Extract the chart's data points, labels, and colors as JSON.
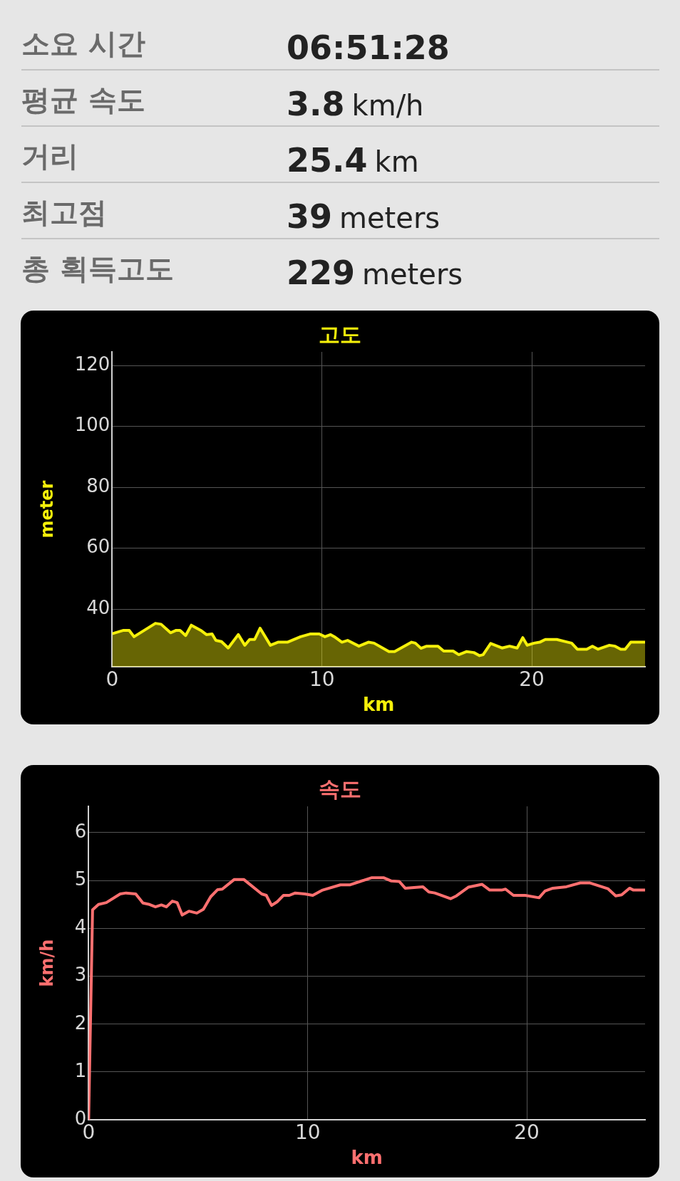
{
  "chart_data": [
    {
      "type": "other",
      "annotations": [
        "소요 시간",
        "06:51:28",
        "평균 속도",
        "3.8 km/h",
        "거리",
        "25.4 km",
        "최고점",
        "39 meters",
        "총 획득고도",
        "229 meters"
      ]
    },
    {
      "type": "area",
      "title": "고도",
      "xlabel": "km",
      "ylabel": "meter",
      "xlim": [
        0,
        25.4
      ],
      "xticks": [
        0,
        10,
        20
      ],
      "ylim": [
        21,
        124.5
      ],
      "yticks": [
        40,
        60,
        80,
        100,
        120
      ],
      "grid": true,
      "legend": false,
      "series": [
        {
          "color": "#f5f00a",
          "x": [
            0,
            0.54,
            0.81,
            1.04,
            2.06,
            2.33,
            2.78,
            3.05,
            3.23,
            3.5,
            3.77,
            4.22,
            4.49,
            4.76,
            4.94,
            5.21,
            5.53,
            6.01,
            6.32,
            6.55,
            6.79,
            7.05,
            7.54,
            7.9,
            8.35,
            8.98,
            9.43,
            9.87,
            10.14,
            10.41,
            10.59,
            10.95,
            11.22,
            11.76,
            12.21,
            12.48,
            13.19,
            13.46,
            14.27,
            14.45,
            14.72,
            14.99,
            15.53,
            15.8,
            16.25,
            16.52,
            16.88,
            17.24,
            17.51,
            17.68,
            18.04,
            18.58,
            18.94,
            19.3,
            19.57,
            19.78,
            20.11,
            20.38,
            20.65,
            21.19,
            21.72,
            21.9,
            22.17,
            22.62,
            22.89,
            23.16,
            23.7,
            23.97,
            24.24,
            24.45,
            24.72,
            25.4
          ],
          "values": [
            31.9,
            33,
            33,
            30.9,
            35.3,
            35,
            32.2,
            33,
            33,
            31.3,
            34.7,
            33,
            31.6,
            31.8,
            29.7,
            29.3,
            27.2,
            31.6,
            28.1,
            30,
            30,
            33.7,
            28.1,
            29.1,
            29.1,
            30.9,
            31.8,
            31.8,
            30.9,
            31.6,
            30.9,
            29.1,
            29.7,
            27.8,
            29.1,
            28.8,
            26,
            26,
            29.1,
            28.8,
            27.1,
            27.8,
            27.8,
            26.2,
            26.2,
            25,
            26,
            25.7,
            24.7,
            25,
            28.7,
            27.2,
            27.8,
            27.2,
            30.6,
            28.1,
            28.8,
            29.1,
            30,
            30,
            29.1,
            28.8,
            26.8,
            26.8,
            27.8,
            26.8,
            28.1,
            27.8,
            26.8,
            26.8,
            29.1,
            29.1
          ]
        }
      ]
    },
    {
      "type": "line",
      "title": "속도",
      "xlabel": "km",
      "ylabel": "km/h",
      "xlim": [
        0,
        25.4
      ],
      "xticks": [
        0,
        10,
        20
      ],
      "ylim": [
        0,
        6.55
      ],
      "yticks": [
        0,
        1,
        2,
        3,
        4,
        5,
        6
      ],
      "grid": true,
      "legend": false,
      "series": [
        {
          "color": "#ff7070",
          "x": [
            0,
            0.18,
            0.45,
            0.81,
            1.44,
            1.71,
            2.15,
            2.48,
            2.78,
            3.05,
            3.32,
            3.55,
            3.82,
            4.04,
            4.27,
            4.58,
            4.94,
            5.24,
            5.57,
            5.89,
            6.1,
            6.64,
            7.09,
            7.9,
            8.11,
            8.35,
            8.62,
            8.89,
            9.16,
            9.43,
            9.87,
            10.23,
            10.68,
            11.49,
            11.94,
            12.39,
            12.93,
            13.46,
            13.82,
            14.18,
            14.45,
            15.26,
            15.53,
            15.8,
            16.52,
            16.79,
            17.33,
            17.96,
            18.31,
            18.85,
            19.03,
            19.39,
            19.93,
            20.56,
            20.83,
            21.19,
            21.81,
            22.44,
            22.89,
            23.7,
            24.06,
            24.33,
            24.69,
            24.87,
            25.4
          ],
          "values": [
            0,
            4.39,
            4.5,
            4.54,
            4.72,
            4.74,
            4.72,
            4.53,
            4.5,
            4.45,
            4.49,
            4.45,
            4.57,
            4.54,
            4.28,
            4.36,
            4.32,
            4.4,
            4.66,
            4.81,
            4.82,
            5.02,
            5.02,
            4.72,
            4.69,
            4.48,
            4.56,
            4.69,
            4.69,
            4.74,
            4.72,
            4.69,
            4.8,
            4.91,
            4.91,
            4.98,
            5.06,
            5.06,
            4.99,
            4.98,
            4.84,
            4.87,
            4.76,
            4.74,
            4.62,
            4.68,
            4.86,
            4.92,
            4.8,
            4.8,
            4.82,
            4.69,
            4.69,
            4.64,
            4.78,
            4.84,
            4.87,
            4.95,
            4.95,
            4.83,
            4.68,
            4.7,
            4.84,
            4.8,
            4.8
          ]
        }
      ]
    }
  ]
}
